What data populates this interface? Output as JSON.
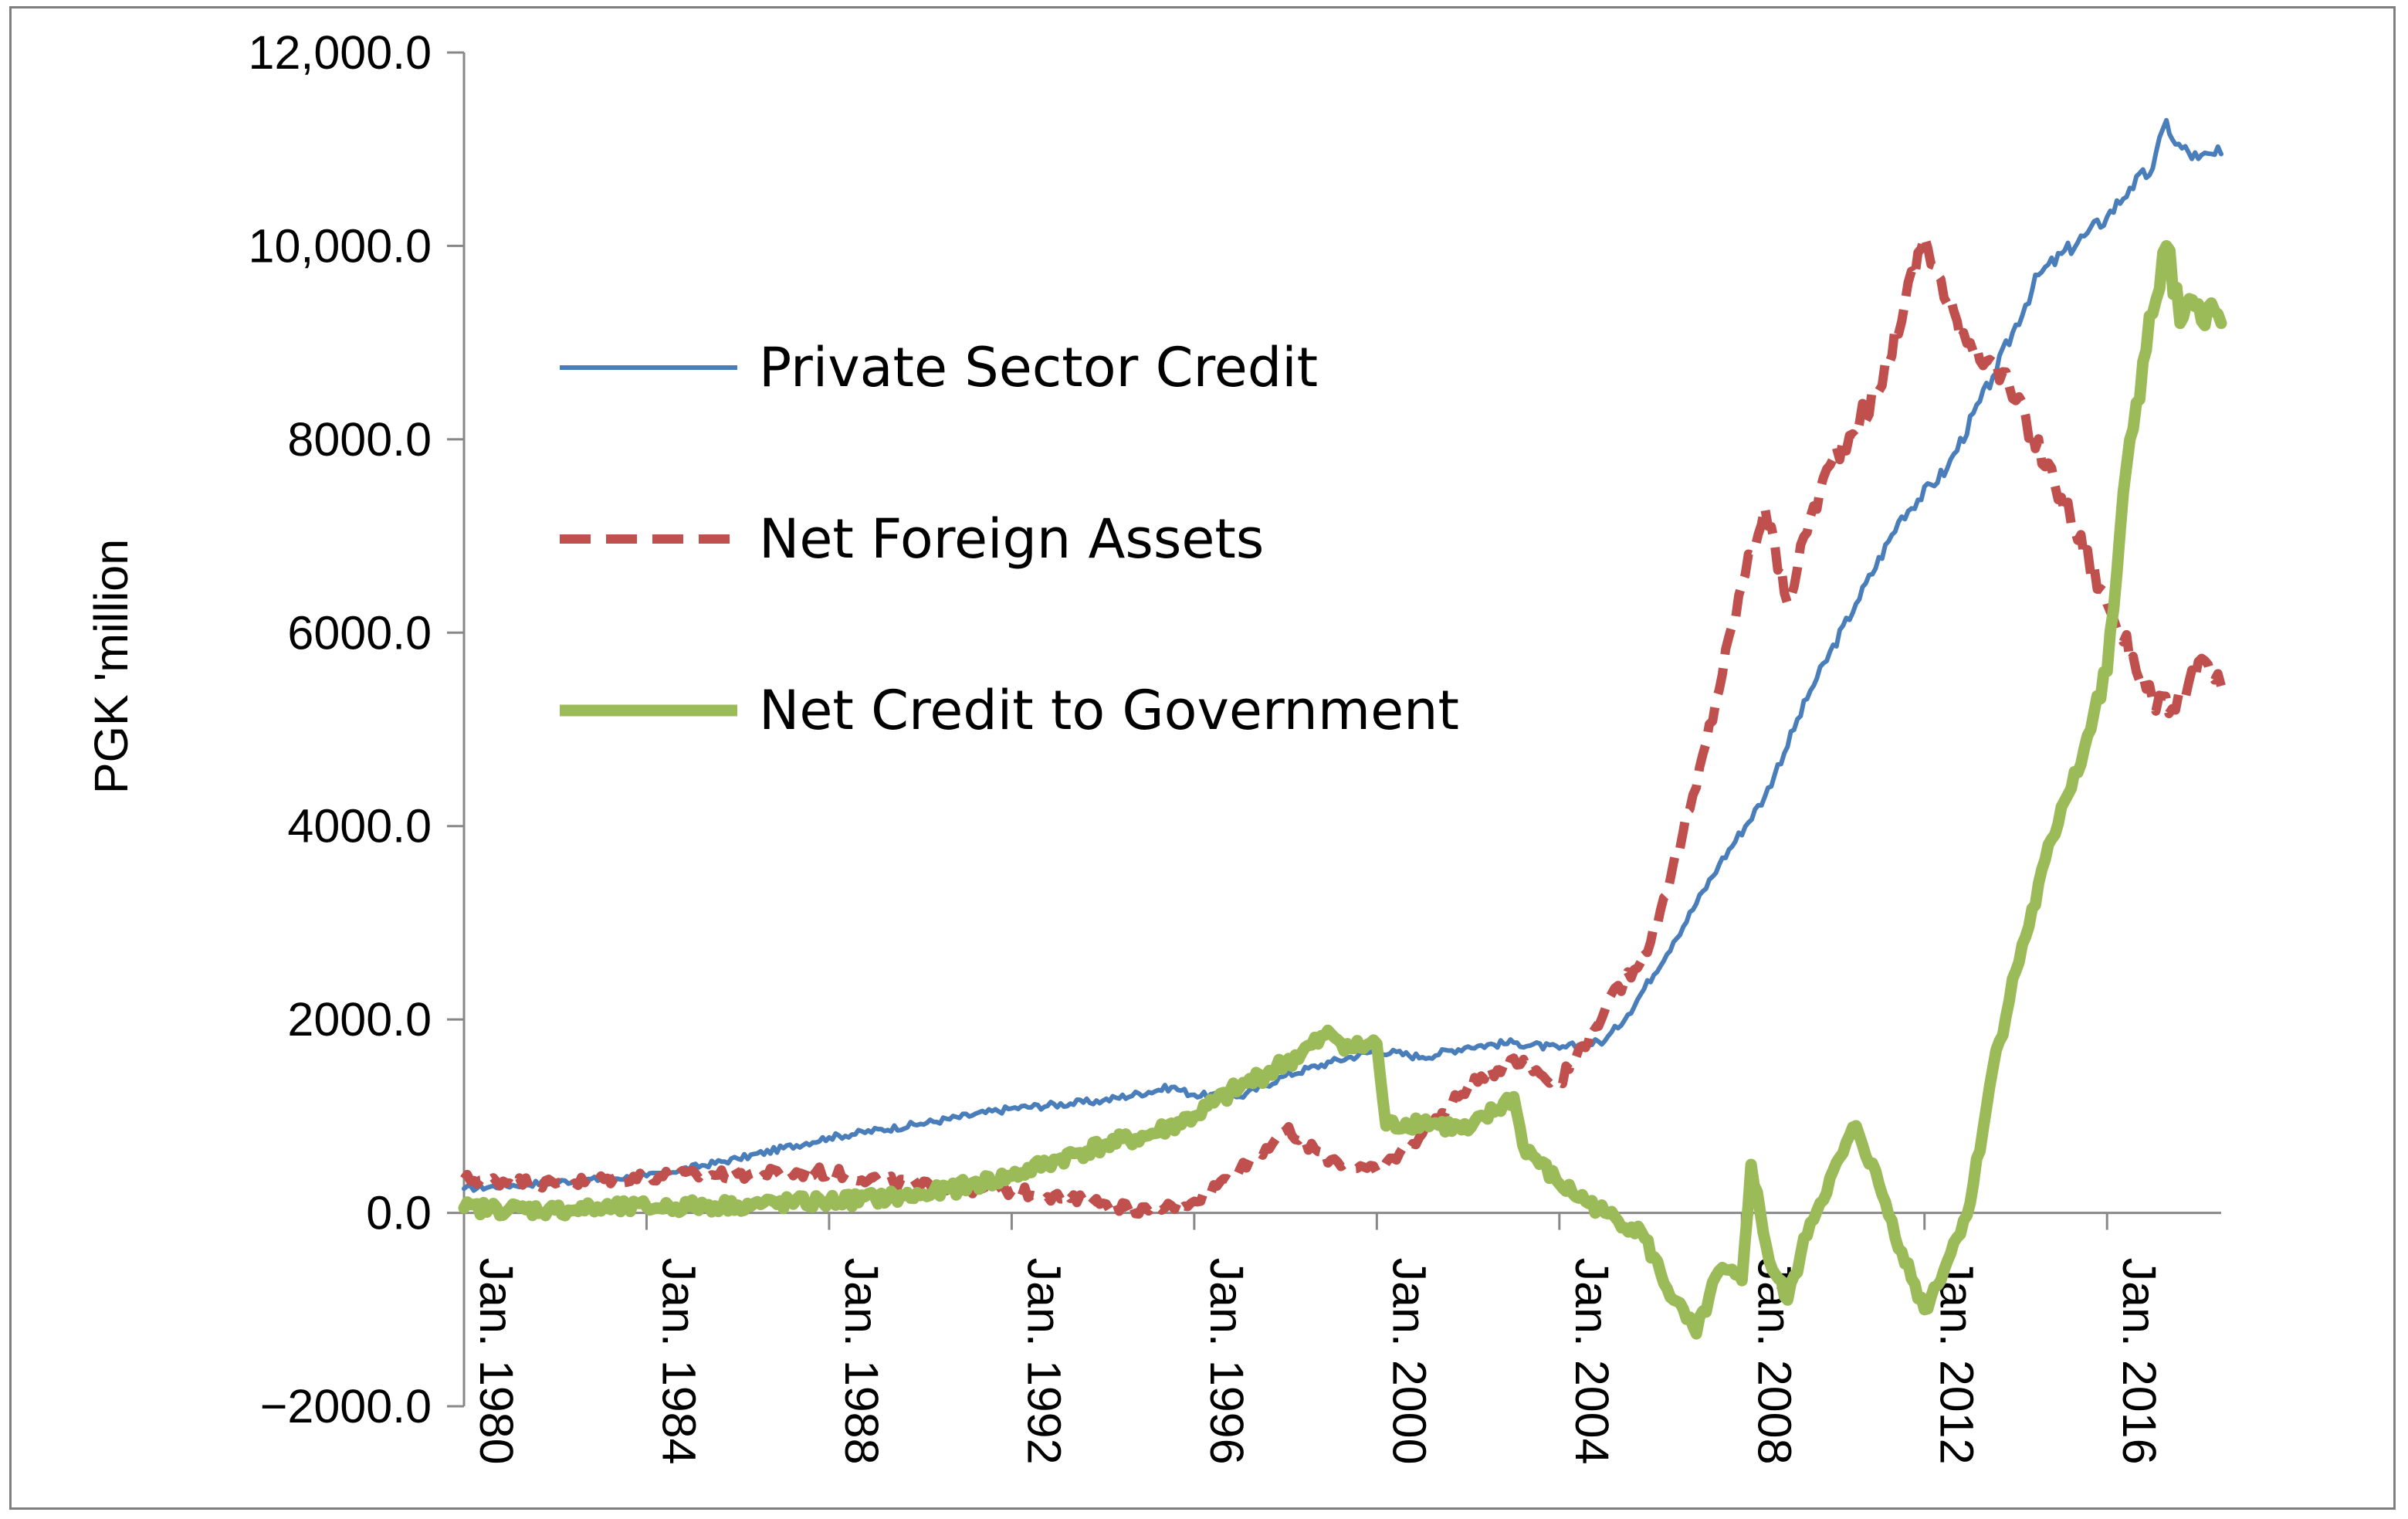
{
  "chart_data": {
    "type": "line",
    "title": "",
    "xlabel": "",
    "ylabel": "PGK 'million",
    "ylim": [
      -2000,
      12000
    ],
    "xlim": [
      1980.0,
      2018.5
    ],
    "y_ticks": [
      {
        "value": 12000,
        "label": "12,000.0"
      },
      {
        "value": 10000,
        "label": "10,000.0"
      },
      {
        "value": 8000,
        "label": "8000.0"
      },
      {
        "value": 6000,
        "label": "6000.0"
      },
      {
        "value": 4000,
        "label": "4000.0"
      },
      {
        "value": 2000,
        "label": "2000.0"
      },
      {
        "value": 0,
        "label": "0.0"
      },
      {
        "value": -2000,
        "label": "−2000.0"
      }
    ],
    "x_ticks": [
      {
        "value": 1980,
        "label": "Jan. 1980"
      },
      {
        "value": 1984,
        "label": "Jan. 1984"
      },
      {
        "value": 1988,
        "label": "Jan. 1988"
      },
      {
        "value": 1992,
        "label": "Jan. 1992"
      },
      {
        "value": 1996,
        "label": "Jan. 1996"
      },
      {
        "value": 2000,
        "label": "Jan. 2000"
      },
      {
        "value": 2004,
        "label": "Jan. 2004"
      },
      {
        "value": 2008,
        "label": "Jan. 2008"
      },
      {
        "value": 2012,
        "label": "Jan. 2012"
      },
      {
        "value": 2016,
        "label": "Jan. 2016"
      }
    ],
    "grid": false,
    "legend_position": "upper-left",
    "series": [
      {
        "name": "Private Sector Credit",
        "color": "#4a7ebb",
        "style": "solid",
        "width": "thin",
        "points": [
          [
            1980.0,
            250
          ],
          [
            1982.0,
            320
          ],
          [
            1984.0,
            380
          ],
          [
            1986.0,
            560
          ],
          [
            1988.0,
            780
          ],
          [
            1990.0,
            920
          ],
          [
            1992.0,
            1080
          ],
          [
            1994.0,
            1160
          ],
          [
            1995.5,
            1300
          ],
          [
            1996.0,
            1220
          ],
          [
            1997.0,
            1200
          ],
          [
            1998.0,
            1420
          ],
          [
            1999.0,
            1560
          ],
          [
            2000.0,
            1680
          ],
          [
            2001.0,
            1610
          ],
          [
            2002.0,
            1720
          ],
          [
            2003.0,
            1760
          ],
          [
            2004.0,
            1700
          ],
          [
            2005.0,
            1780
          ],
          [
            2005.5,
            2050
          ],
          [
            2006.5,
            2800
          ],
          [
            2007.5,
            3600
          ],
          [
            2008.5,
            4300
          ],
          [
            2009.5,
            5400
          ],
          [
            2010.5,
            6300
          ],
          [
            2011.5,
            7200
          ],
          [
            2012.5,
            7700
          ],
          [
            2013.5,
            8650
          ],
          [
            2014.5,
            9700
          ],
          [
            2015.5,
            10100
          ],
          [
            2016.0,
            10300
          ],
          [
            2016.5,
            10600
          ],
          [
            2017.0,
            10800
          ],
          [
            2017.3,
            11300
          ],
          [
            2017.5,
            11050
          ],
          [
            2018.0,
            10900
          ],
          [
            2018.5,
            10950
          ]
        ]
      },
      {
        "name": "Net Foreign Assets",
        "color": "#c0504d",
        "style": "dashed",
        "width": "medium",
        "points": [
          [
            1980.0,
            350
          ],
          [
            1982.0,
            300
          ],
          [
            1984.0,
            380
          ],
          [
            1986.0,
            400
          ],
          [
            1988.0,
            420
          ],
          [
            1990.0,
            280
          ],
          [
            1992.0,
            230
          ],
          [
            1994.0,
            100
          ],
          [
            1995.0,
            20
          ],
          [
            1996.0,
            120
          ],
          [
            1997.0,
            450
          ],
          [
            1998.0,
            850
          ],
          [
            1999.0,
            550
          ],
          [
            2000.0,
            420
          ],
          [
            2001.0,
            820
          ],
          [
            2002.0,
            1300
          ],
          [
            2003.0,
            1600
          ],
          [
            2004.0,
            1350
          ],
          [
            2005.0,
            2100
          ],
          [
            2006.0,
            2800
          ],
          [
            2007.0,
            4400
          ],
          [
            2008.0,
            6500
          ],
          [
            2008.5,
            7300
          ],
          [
            2009.0,
            6300
          ],
          [
            2009.5,
            7200
          ],
          [
            2010.0,
            7800
          ],
          [
            2011.0,
            8500
          ],
          [
            2012.0,
            10100
          ],
          [
            2012.5,
            9400
          ],
          [
            2013.0,
            9000
          ],
          [
            2013.5,
            8800
          ],
          [
            2014.0,
            8400
          ],
          [
            2015.0,
            7400
          ],
          [
            2016.0,
            6300
          ],
          [
            2017.0,
            5300
          ],
          [
            2017.5,
            5200
          ],
          [
            2018.0,
            5700
          ],
          [
            2018.5,
            5450
          ]
        ]
      },
      {
        "name": "Net Credit to Government",
        "color": "#9bbb59",
        "style": "solid",
        "width": "thick",
        "points": [
          [
            1980.0,
            50
          ],
          [
            1982.0,
            30
          ],
          [
            1984.0,
            60
          ],
          [
            1986.0,
            80
          ],
          [
            1988.0,
            120
          ],
          [
            1990.0,
            180
          ],
          [
            1992.0,
            380
          ],
          [
            1993.0,
            550
          ],
          [
            1994.0,
            700
          ],
          [
            1995.0,
            800
          ],
          [
            1996.0,
            1000
          ],
          [
            1997.0,
            1300
          ],
          [
            1998.0,
            1550
          ],
          [
            1999.0,
            1850
          ],
          [
            1999.5,
            1700
          ],
          [
            2000.0,
            1750
          ],
          [
            2000.2,
            900
          ],
          [
            2001.0,
            950
          ],
          [
            2002.0,
            850
          ],
          [
            2003.0,
            1200
          ],
          [
            2003.2,
            700
          ],
          [
            2004.0,
            300
          ],
          [
            2005.0,
            0
          ],
          [
            2005.8,
            -200
          ],
          [
            2006.5,
            -900
          ],
          [
            2007.0,
            -1250
          ],
          [
            2007.5,
            -600
          ],
          [
            2008.0,
            -700
          ],
          [
            2008.2,
            500
          ],
          [
            2008.6,
            -500
          ],
          [
            2009.0,
            -900
          ],
          [
            2009.5,
            -100
          ],
          [
            2010.5,
            900
          ],
          [
            2011.0,
            300
          ],
          [
            2011.5,
            -400
          ],
          [
            2012.0,
            -1000
          ],
          [
            2012.5,
            -500
          ],
          [
            2013.0,
            100
          ],
          [
            2013.5,
            1500
          ],
          [
            2014.0,
            2500
          ],
          [
            2015.0,
            4200
          ],
          [
            2015.5,
            4800
          ],
          [
            2016.0,
            5600
          ],
          [
            2016.5,
            8000
          ],
          [
            2017.0,
            9300
          ],
          [
            2017.3,
            10000
          ],
          [
            2017.6,
            9200
          ],
          [
            2018.0,
            9400
          ],
          [
            2018.5,
            9200
          ]
        ]
      }
    ]
  }
}
